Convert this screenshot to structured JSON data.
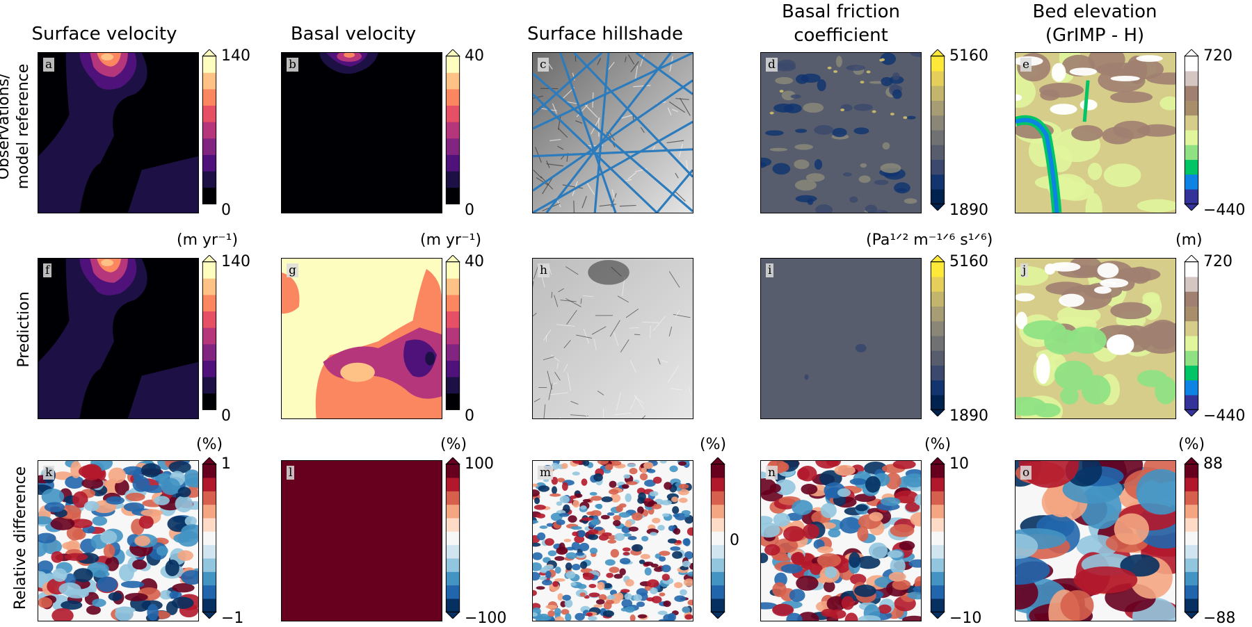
{
  "columns": [
    {
      "title": "Surface velocity"
    },
    {
      "title": "Basal velocity"
    },
    {
      "title": "Surface hillshade"
    },
    {
      "title": "Basal friction\ncoefficient"
    },
    {
      "title": "Bed elevation\n(GrIMP - H)"
    }
  ],
  "rows": [
    {
      "title": "Observations/\nmodel reference"
    },
    {
      "title": "Prediction"
    },
    {
      "title": "Relative difference"
    }
  ],
  "panels": [
    {
      "label": "a",
      "cbar": {
        "min": "0",
        "max": "140",
        "cmap": "magma"
      }
    },
    {
      "label": "b",
      "cbar": {
        "min": "0",
        "max": "40",
        "cmap": "magma"
      }
    },
    {
      "label": "c"
    },
    {
      "label": "d",
      "cbar": {
        "min": "1890",
        "max": "5160",
        "cmap": "cividis"
      }
    },
    {
      "label": "e",
      "cbar": {
        "min": "−440",
        "max": "720",
        "cmap": "terrain"
      }
    },
    {
      "label": "f",
      "unit": "(m yr⁻¹)",
      "cbar": {
        "min": "0",
        "max": "140",
        "cmap": "magma"
      }
    },
    {
      "label": "g",
      "unit": "(m yr⁻¹)",
      "cbar": {
        "min": "0",
        "max": "40",
        "cmap": "magma"
      }
    },
    {
      "label": "h"
    },
    {
      "label": "i",
      "unit": "(Pa¹ᐟ² m⁻¹ᐟ⁶ s¹ᐟ⁶)",
      "cbar": {
        "min": "1890",
        "max": "5160",
        "cmap": "cividis"
      }
    },
    {
      "label": "j",
      "unit": "(m)",
      "cbar": {
        "min": "−440",
        "max": "720",
        "cmap": "terrain"
      }
    },
    {
      "label": "k",
      "unit": "(%)",
      "cbar": {
        "min": "−1",
        "max": "1",
        "cmap": "RdBu_r"
      }
    },
    {
      "label": "l",
      "unit": "(%)",
      "cbar": {
        "min": "−100",
        "max": "100",
        "cmap": "RdBu_r"
      }
    },
    {
      "label": "m",
      "unit": "(%)",
      "cbar": {
        "mid": "0",
        "cmap": "RdBu_r"
      }
    },
    {
      "label": "n",
      "unit": "(%)",
      "cbar": {
        "min": "−10",
        "max": "10",
        "cmap": "RdBu_r"
      }
    },
    {
      "label": "o",
      "unit": "(%)",
      "cbar": {
        "min": "−88",
        "max": "88",
        "cmap": "RdBu_r"
      }
    }
  ],
  "chart_data": {
    "type": "heatmap",
    "grid": "5 columns x 3 rows",
    "colorbars": {
      "surface_velocity": {
        "range": [
          0,
          140
        ],
        "units": "m yr^-1"
      },
      "basal_velocity": {
        "range": [
          0,
          40
        ],
        "units": "m yr^-1"
      },
      "basal_friction_coefficient": {
        "range": [
          1890,
          5160
        ],
        "units": "Pa^1/2 m^-1/6 s^1/6"
      },
      "bed_elevation": {
        "range": [
          -440,
          720
        ],
        "units": "m"
      },
      "relative_difference": {
        "ranges": {
          "k": [
            -1,
            1
          ],
          "l": [
            -100,
            100
          ],
          "m": [
            0,
            0
          ],
          "n": [
            -10,
            10
          ],
          "o": [
            -88,
            88
          ]
        },
        "units": "%"
      }
    }
  }
}
